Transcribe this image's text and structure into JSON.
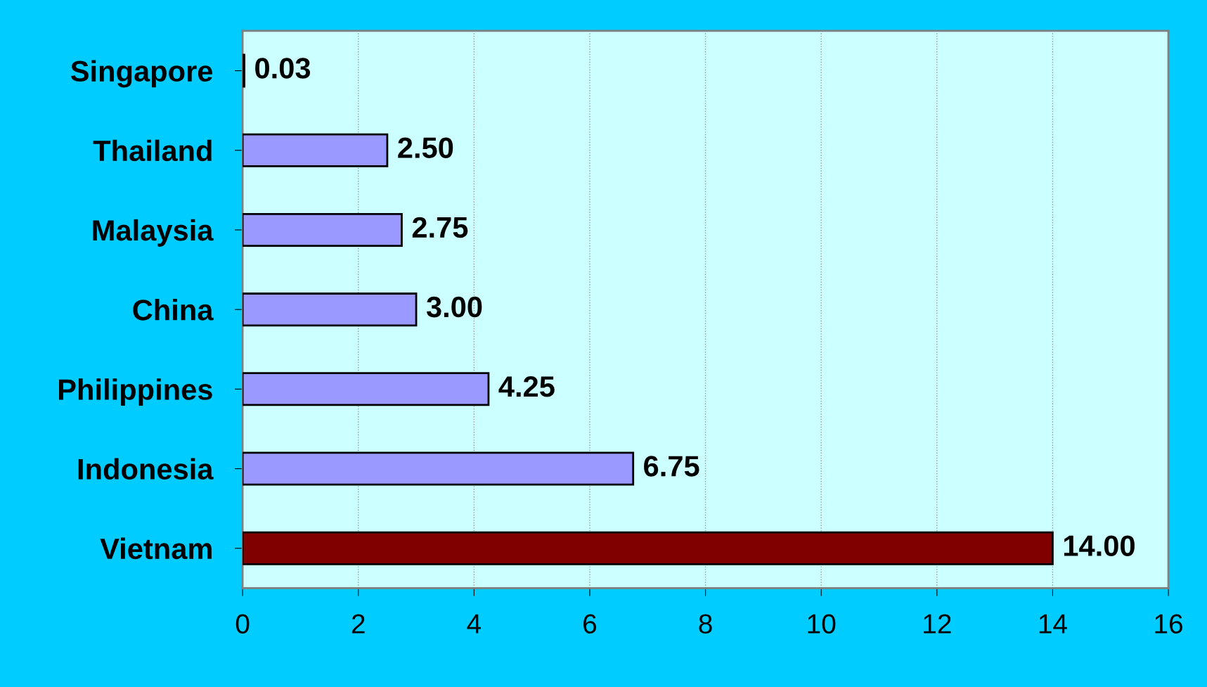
{
  "chart_data": {
    "type": "bar",
    "orientation": "horizontal",
    "categories": [
      "Singapore",
      "Thailand",
      "Malaysia",
      "China",
      "Philippines",
      "Indonesia",
      "Vietnam"
    ],
    "values": [
      0.03,
      2.5,
      2.75,
      3.0,
      4.25,
      6.75,
      14.0
    ],
    "colors": [
      "#9999ff",
      "#9999ff",
      "#9999ff",
      "#9999ff",
      "#9999ff",
      "#9999ff",
      "#800000"
    ],
    "value_labels": [
      "0.03",
      "2.50",
      "2.75",
      "3.00",
      "4.25",
      "6.75",
      "14.00"
    ],
    "xlim": [
      0,
      16
    ],
    "xticks": [
      0,
      2,
      4,
      6,
      8,
      10,
      12,
      14,
      16
    ],
    "grid": "x"
  }
}
